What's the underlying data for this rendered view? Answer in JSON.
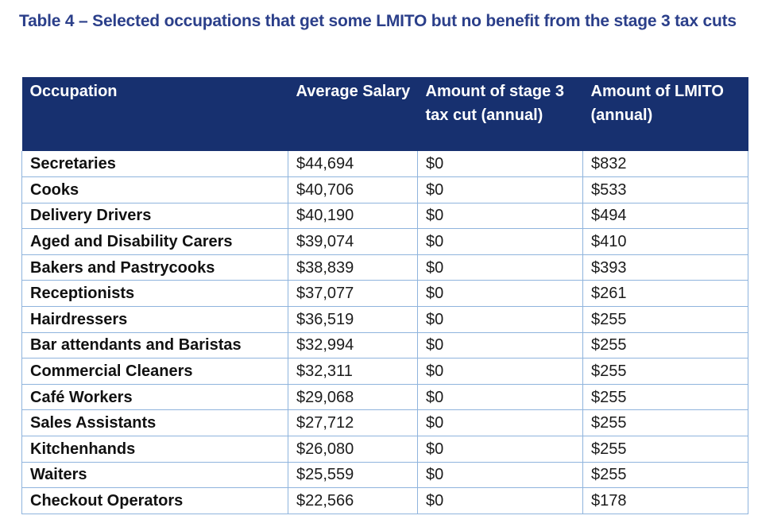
{
  "caption": "Table 4 – Selected occupations that get some LMITO but no benefit from the stage 3 tax cuts",
  "table": {
    "headers": {
      "occupation": "Occupation",
      "salary": "Average Salary",
      "stage3": "Amount of stage 3 tax cut (annual)",
      "lmito": "Amount of LMITO (annual)"
    },
    "rows": [
      {
        "occupation": "Secretaries",
        "salary": "$44,694",
        "stage3": "$0",
        "lmito": "$832"
      },
      {
        "occupation": "Cooks",
        "salary": "$40,706",
        "stage3": "$0",
        "lmito": "$533"
      },
      {
        "occupation": "Delivery Drivers",
        "salary": "$40,190",
        "stage3": "$0",
        "lmito": "$494"
      },
      {
        "occupation": "Aged and Disability Carers",
        "salary": "$39,074",
        "stage3": "$0",
        "lmito": "$410"
      },
      {
        "occupation": "Bakers and Pastrycooks",
        "salary": "$38,839",
        "stage3": "$0",
        "lmito": "$393"
      },
      {
        "occupation": "Receptionists",
        "salary": "$37,077",
        "stage3": "$0",
        "lmito": "$261"
      },
      {
        "occupation": "Hairdressers",
        "salary": "$36,519",
        "stage3": "$0",
        "lmito": "$255"
      },
      {
        "occupation": "Bar attendants and Baristas",
        "salary": "$32,994",
        "stage3": "$0",
        "lmito": "$255"
      },
      {
        "occupation": "Commercial Cleaners",
        "salary": "$32,311",
        "stage3": "$0",
        "lmito": "$255"
      },
      {
        "occupation": "Café Workers",
        "salary": "$29,068",
        "stage3": "$0",
        "lmito": "$255"
      },
      {
        "occupation": "Sales Assistants",
        "salary": "$27,712",
        "stage3": "$0",
        "lmito": "$255"
      },
      {
        "occupation": "Kitchenhands",
        "salary": "$26,080",
        "stage3": "$0",
        "lmito": "$255"
      },
      {
        "occupation": "Waiters",
        "salary": "$25,559",
        "stage3": "$0",
        "lmito": "$255"
      },
      {
        "occupation": "Checkout Operators",
        "salary": "$22,566",
        "stage3": "$0",
        "lmito": "$178"
      }
    ]
  },
  "colors": {
    "caption": "#2b3f8a",
    "header_background": "#17306f",
    "grid_lines": "#8fb4dd"
  }
}
